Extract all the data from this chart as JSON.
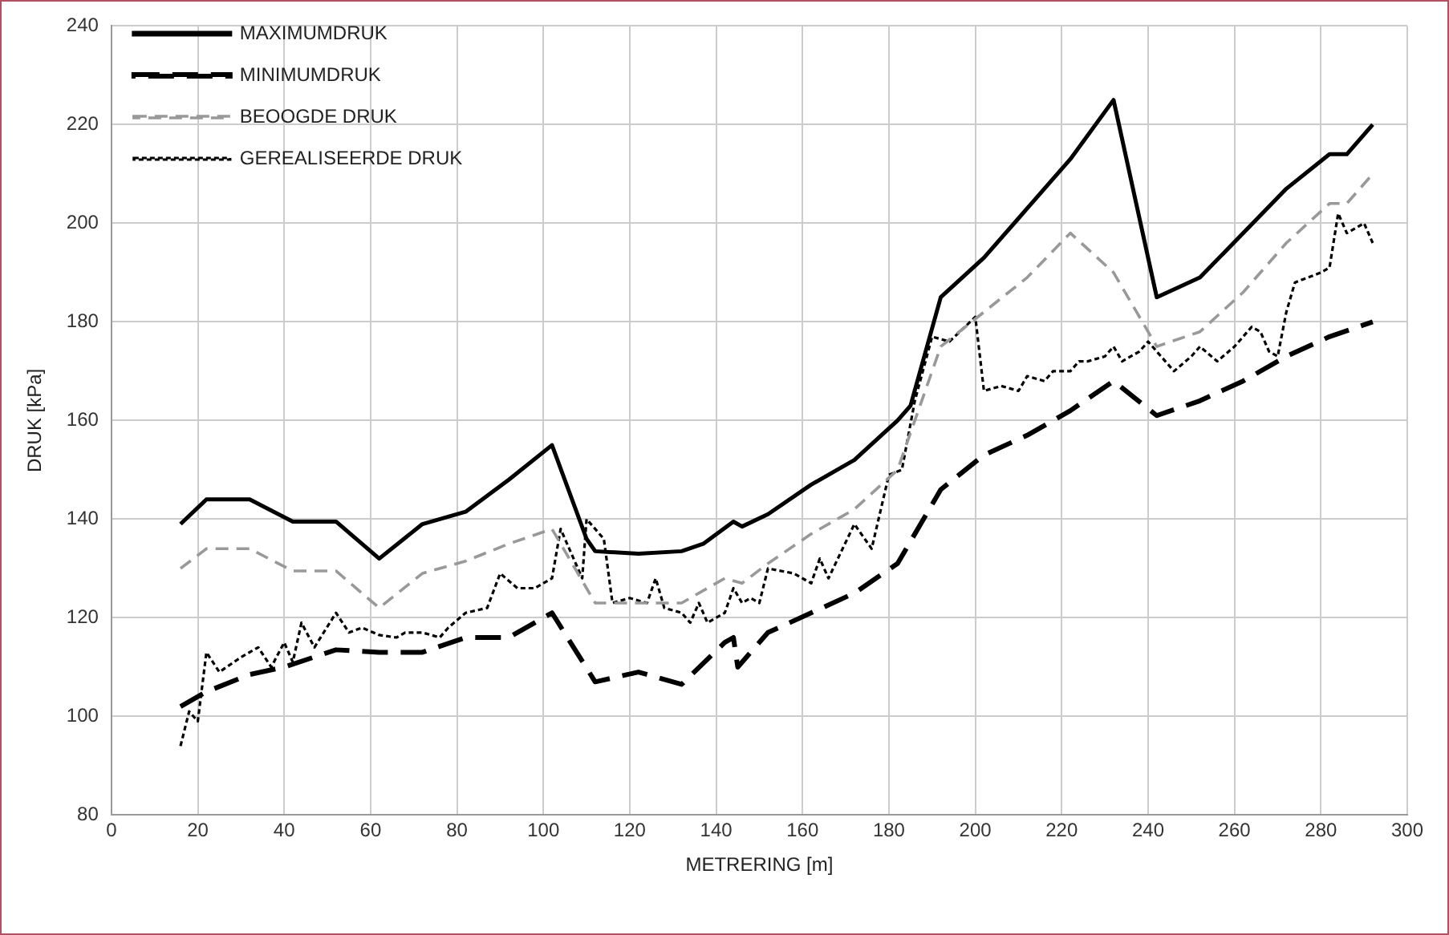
{
  "chart_data": {
    "type": "line",
    "xlabel": "METRERING [m]",
    "ylabel": "DRUK [kPa]",
    "xlim": [
      0,
      300
    ],
    "xticks": [
      0,
      20,
      40,
      60,
      80,
      100,
      120,
      140,
      160,
      180,
      200,
      220,
      240,
      260,
      280,
      300
    ],
    "ylim": [
      80,
      240
    ],
    "yticks": [
      80,
      100,
      120,
      140,
      160,
      180,
      200,
      220,
      240
    ],
    "grid": true,
    "legend": "top left",
    "marker": "none",
    "series": [
      {
        "name": "MAXIMUMDRUK",
        "color": "#000000",
        "line_style": "solid",
        "x": [
          16,
          22,
          32,
          42,
          52,
          62,
          72,
          82,
          92,
          102,
          110,
          112,
          122,
          132,
          137,
          144,
          146,
          152,
          162,
          172,
          182,
          185,
          192,
          202,
          212,
          214,
          222,
          232,
          242,
          252,
          262,
          272,
          282,
          286,
          292
        ],
        "values": [
          139,
          144,
          144,
          139.5,
          139.5,
          132,
          139,
          141.5,
          148,
          155,
          136,
          133.5,
          133,
          133.5,
          135,
          139.5,
          138.5,
          141,
          147,
          152,
          160,
          163,
          185,
          193,
          203,
          205,
          213,
          225,
          185,
          189,
          198,
          207,
          214,
          214,
          220
        ]
      },
      {
        "name": "MINIMUMDRUK",
        "color": "#000000",
        "line_style": "longdash",
        "x": [
          16,
          22,
          32,
          40,
          52,
          62,
          72,
          82,
          92,
          102,
          112,
          122,
          132,
          142,
          144,
          145,
          152,
          162,
          172,
          182,
          192,
          202,
          212,
          222,
          232,
          242,
          252,
          262,
          272,
          282,
          292
        ],
        "values": [
          102,
          105,
          108.5,
          110,
          113.5,
          113,
          113,
          116,
          116,
          121,
          107,
          109,
          106.5,
          115,
          116,
          110,
          117,
          121,
          125,
          131,
          146,
          153,
          157,
          162,
          168,
          161,
          164,
          168,
          173,
          177,
          180
        ]
      },
      {
        "name": "BEOOGDE DRUK",
        "color": "#999999",
        "line_style": "dashed",
        "x": [
          16,
          22,
          32,
          42,
          52,
          62,
          72,
          82,
          92,
          102,
          112,
          122,
          132,
          142,
          146,
          152,
          162,
          172,
          182,
          192,
          202,
          212,
          222,
          232,
          242,
          252,
          262,
          272,
          282,
          286,
          292
        ],
        "values": [
          130,
          134,
          134,
          129.5,
          129.5,
          122,
          129,
          131.5,
          135,
          138,
          123,
          123,
          123,
          128,
          127,
          131,
          137,
          142,
          150,
          175,
          182,
          189,
          198,
          190,
          175,
          178,
          186,
          196,
          204,
          204,
          210
        ]
      },
      {
        "name": "GEREALISEERDE DRUK",
        "color": "#000000",
        "line_style": "dotted",
        "x": [
          16,
          18,
          20,
          22,
          25,
          30,
          34,
          37,
          40,
          42,
          44,
          47,
          52,
          55,
          58,
          62,
          66,
          68,
          72,
          76,
          78,
          82,
          87,
          90,
          94,
          98,
          102,
          104,
          106,
          109,
          110,
          114,
          116,
          120,
          124,
          126,
          128,
          132,
          134,
          136,
          138,
          142,
          144,
          146,
          148,
          150,
          152,
          158,
          162,
          164,
          166,
          172,
          176,
          180,
          183,
          186,
          190,
          194,
          200,
          202,
          206,
          210,
          212,
          216,
          218,
          222,
          224,
          226,
          230,
          232,
          234,
          238,
          240,
          244,
          246,
          250,
          252,
          256,
          260,
          264,
          266,
          268,
          270,
          272,
          274,
          280,
          282,
          284,
          286,
          290,
          292
        ],
        "values": [
          94,
          101,
          99,
          113,
          109,
          112,
          114,
          110,
          115,
          111,
          119,
          114,
          121,
          117,
          118,
          116.5,
          116,
          117,
          117,
          116,
          118,
          121,
          122,
          129,
          126,
          126,
          128,
          138,
          134,
          128,
          140,
          136,
          123,
          124,
          123,
          128,
          122,
          121,
          119,
          123,
          119,
          121,
          126,
          123,
          124,
          123,
          130,
          129,
          127,
          132,
          128,
          139,
          134,
          149,
          150,
          164,
          177,
          176,
          181,
          166,
          167,
          166,
          169,
          168,
          170,
          170,
          172,
          172,
          173,
          175,
          172,
          174,
          176,
          172,
          170,
          173,
          175,
          172,
          175,
          179,
          178,
          174,
          173,
          182,
          188,
          190,
          191,
          202,
          198,
          200,
          196
        ]
      }
    ]
  }
}
